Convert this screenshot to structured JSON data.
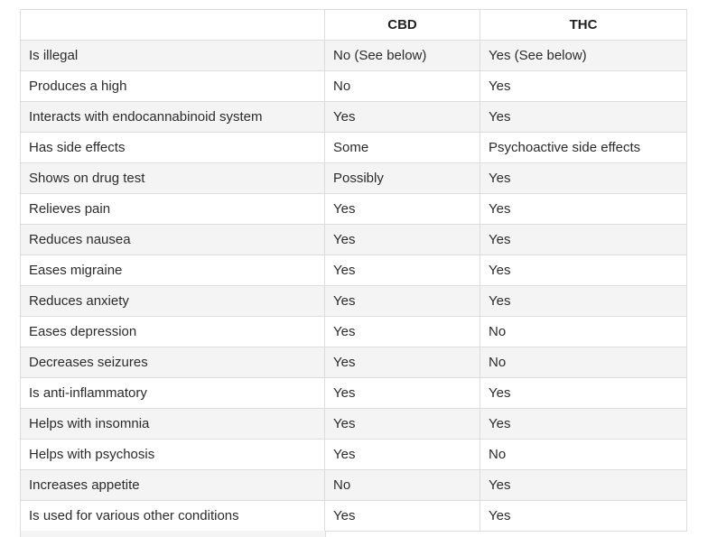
{
  "table": {
    "headers": [
      "",
      "CBD",
      "THC"
    ],
    "rows": [
      [
        "Is illegal",
        "No (See below)",
        "Yes (See below)"
      ],
      [
        "Produces a high",
        "No",
        "Yes"
      ],
      [
        "Interacts with endocannabinoid system",
        "Yes",
        "Yes"
      ],
      [
        "Has side effects",
        "Some",
        "Psychoactive side effects"
      ],
      [
        "Shows on drug test",
        "Possibly",
        "Yes"
      ],
      [
        "Relieves pain",
        "Yes",
        "Yes"
      ],
      [
        "Reduces nausea",
        "Yes",
        "Yes"
      ],
      [
        "Eases migraine",
        "Yes",
        "Yes"
      ],
      [
        "Reduces anxiety",
        "Yes",
        "Yes"
      ],
      [
        "Eases depression",
        "Yes",
        "No"
      ],
      [
        "Decreases seizures",
        "Yes",
        "No"
      ],
      [
        "Is anti-inflammatory",
        "Yes",
        "Yes"
      ],
      [
        "Helps with insomnia",
        "Yes",
        "Yes"
      ],
      [
        "Helps with psychosis",
        "Yes",
        "No"
      ],
      [
        "Increases appetite",
        "No",
        "Yes"
      ],
      [
        "Is used for various other conditions",
        "Yes",
        "Yes"
      ]
    ]
  }
}
